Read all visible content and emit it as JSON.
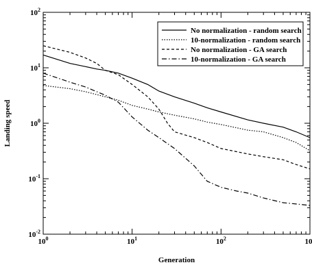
{
  "chart_data": {
    "type": "line",
    "xlabel": "Generation",
    "ylabel": "Landing speed",
    "x_scale": "log",
    "y_scale": "log",
    "xlim": [
      1,
      1000
    ],
    "ylim": [
      0.01,
      100
    ],
    "x_ticks": [
      {
        "base": "10",
        "exp": "0"
      },
      {
        "base": "10",
        "exp": "1"
      },
      {
        "base": "10",
        "exp": "2"
      },
      {
        "base": "10",
        "exp": "3"
      }
    ],
    "y_ticks": [
      {
        "base": "10",
        "exp": "-2"
      },
      {
        "base": "10",
        "exp": "-1"
      },
      {
        "base": "10",
        "exp": "0"
      },
      {
        "base": "10",
        "exp": "1"
      },
      {
        "base": "10",
        "exp": "2"
      }
    ],
    "legend_position": "top-right",
    "grid": false,
    "series": [
      {
        "name": "No normalization - random search",
        "style": "solid",
        "points": [
          [
            1,
            17
          ],
          [
            2,
            12
          ],
          [
            3,
            10.5
          ],
          [
            4,
            9.5
          ],
          [
            5,
            9
          ],
          [
            7,
            8
          ],
          [
            10,
            6.5
          ],
          [
            15,
            5
          ],
          [
            20,
            3.8
          ],
          [
            30,
            3
          ],
          [
            50,
            2.3
          ],
          [
            70,
            1.9
          ],
          [
            100,
            1.6
          ],
          [
            200,
            1.15
          ],
          [
            300,
            1
          ],
          [
            500,
            0.85
          ],
          [
            700,
            0.7
          ],
          [
            1000,
            0.55
          ]
        ]
      },
      {
        "name": "10-normalization - random search",
        "style": "dotted",
        "points": [
          [
            1,
            4.8
          ],
          [
            2,
            4.2
          ],
          [
            3,
            3.7
          ],
          [
            5,
            3
          ],
          [
            7,
            2.6
          ],
          [
            10,
            2.1
          ],
          [
            15,
            1.8
          ],
          [
            20,
            1.6
          ],
          [
            30,
            1.4
          ],
          [
            50,
            1.2
          ],
          [
            70,
            1.05
          ],
          [
            100,
            0.95
          ],
          [
            200,
            0.75
          ],
          [
            300,
            0.7
          ],
          [
            500,
            0.55
          ],
          [
            700,
            0.45
          ],
          [
            1000,
            0.32
          ]
        ]
      },
      {
        "name": "No normalization - GA search",
        "style": "dashed",
        "points": [
          [
            1,
            25
          ],
          [
            2,
            19
          ],
          [
            3,
            15
          ],
          [
            4,
            12
          ],
          [
            5,
            9
          ],
          [
            7,
            7.5
          ],
          [
            10,
            5
          ],
          [
            15,
            3
          ],
          [
            20,
            1.8
          ],
          [
            25,
            1
          ],
          [
            30,
            0.7
          ],
          [
            50,
            0.55
          ],
          [
            70,
            0.45
          ],
          [
            100,
            0.35
          ],
          [
            200,
            0.28
          ],
          [
            300,
            0.25
          ],
          [
            500,
            0.22
          ],
          [
            700,
            0.18
          ],
          [
            1000,
            0.15
          ]
        ]
      },
      {
        "name": "10-normalization - GA search",
        "style": "dashdot",
        "points": [
          [
            1,
            8
          ],
          [
            2,
            5.5
          ],
          [
            3,
            4.5
          ],
          [
            5,
            3.2
          ],
          [
            7,
            2.4
          ],
          [
            10,
            1.3
          ],
          [
            15,
            0.75
          ],
          [
            20,
            0.55
          ],
          [
            30,
            0.35
          ],
          [
            50,
            0.17
          ],
          [
            70,
            0.09
          ],
          [
            100,
            0.07
          ],
          [
            150,
            0.06
          ],
          [
            200,
            0.055
          ],
          [
            300,
            0.045
          ],
          [
            500,
            0.037
          ],
          [
            700,
            0.035
          ],
          [
            1000,
            0.033
          ]
        ]
      }
    ]
  }
}
